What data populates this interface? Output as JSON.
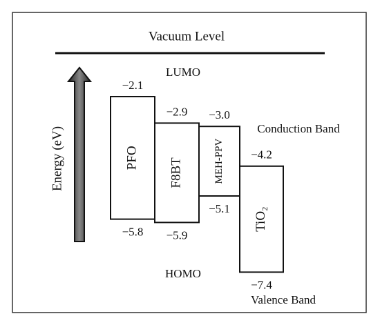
{
  "title": "Vacuum Level",
  "axis_label": "Energy (eV)",
  "lumo_label": "LUMO",
  "homo_label": "HOMO",
  "conduction_label": "Conduction Band",
  "valence_label": "Valence Band",
  "materials": [
    {
      "name": "PFO",
      "lumo": -2.1,
      "homo": -5.8,
      "lumo_label": "−2.1",
      "homo_label": "−5.8"
    },
    {
      "name": "F8BT",
      "lumo": -2.9,
      "homo": -5.9,
      "lumo_label": "−2.9",
      "homo_label": "−5.9"
    },
    {
      "name": "MEH-PPV",
      "lumo": -3.0,
      "homo": -5.1,
      "lumo_label": "−3.0",
      "homo_label": "−5.1"
    },
    {
      "name": "TiO₂",
      "lumo": -4.2,
      "homo": -7.4,
      "lumo_label": "−4.2",
      "homo_label": "−7.4"
    }
  ]
}
